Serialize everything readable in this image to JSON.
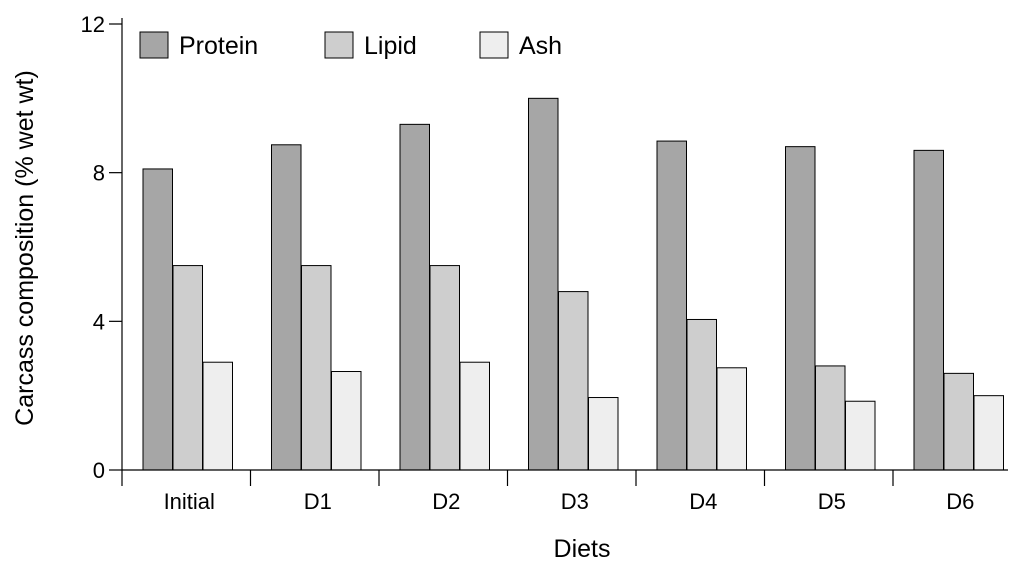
{
  "chart_data": {
    "type": "bar",
    "categories": [
      "Initial",
      "D1",
      "D2",
      "D3",
      "D4",
      "D5",
      "D6"
    ],
    "series": [
      {
        "name": "Protein",
        "color": "#a6a6a6",
        "values": [
          8.1,
          8.75,
          9.3,
          10.0,
          8.85,
          8.7,
          8.6
        ]
      },
      {
        "name": "Lipid",
        "color": "#cecece",
        "values": [
          5.5,
          5.5,
          5.5,
          4.8,
          4.05,
          2.8,
          2.6
        ]
      },
      {
        "name": "Ash",
        "color": "#eeeeee",
        "values": [
          2.9,
          2.65,
          2.9,
          1.95,
          2.75,
          1.85,
          2.0
        ]
      }
    ],
    "xlabel": "Diets",
    "ylabel": "Carcass composition (% wet wt)",
    "ylim": [
      0,
      12
    ],
    "yticks": [
      0,
      4,
      8,
      12
    ],
    "grid": false,
    "legend_position": "top-left"
  }
}
